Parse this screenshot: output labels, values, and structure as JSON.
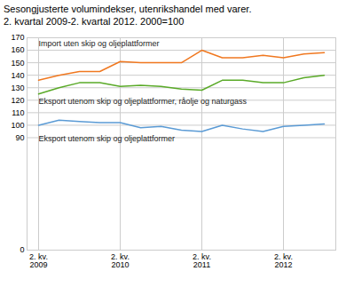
{
  "chart_data": {
    "type": "line",
    "title": "Sesongjusterte volumindekser, utenrikshandel med varer.",
    "subtitle": "2. kvartal 2009-2. kvartal 2012. 2000=100",
    "categories": [
      "2. kv.\n2009",
      null,
      null,
      null,
      "2. kv.\n2010",
      null,
      null,
      null,
      "2. kv.\n2011",
      null,
      null,
      null,
      "2. kv.\n2012",
      null,
      null
    ],
    "series": [
      {
        "name": "Import uten skip og oljeplattformer",
        "color": "#f07820",
        "values": [
          136,
          140,
          143,
          143,
          151,
          150,
          150,
          150,
          160,
          154,
          154,
          156,
          154,
          157,
          158
        ]
      },
      {
        "name": "Eksport utenom skip og oljeplattformer, råolje og naturgass",
        "color": "#5aaa28",
        "values": [
          125,
          130,
          134,
          134,
          131,
          132,
          131,
          129,
          128,
          136,
          136,
          134,
          134,
          138,
          140
        ]
      },
      {
        "name": "Eksport utenom skip og oljeplattformer",
        "color": "#5b9bd5",
        "values": [
          100,
          104,
          103,
          102,
          102,
          98,
          99,
          96,
          95,
          100,
          97,
          95,
          99,
          100,
          101
        ]
      }
    ],
    "ylim": [
      0,
      170
    ],
    "yticks": [
      0,
      90,
      100,
      110,
      120,
      130,
      140,
      150,
      160,
      170
    ],
    "grid": true
  }
}
